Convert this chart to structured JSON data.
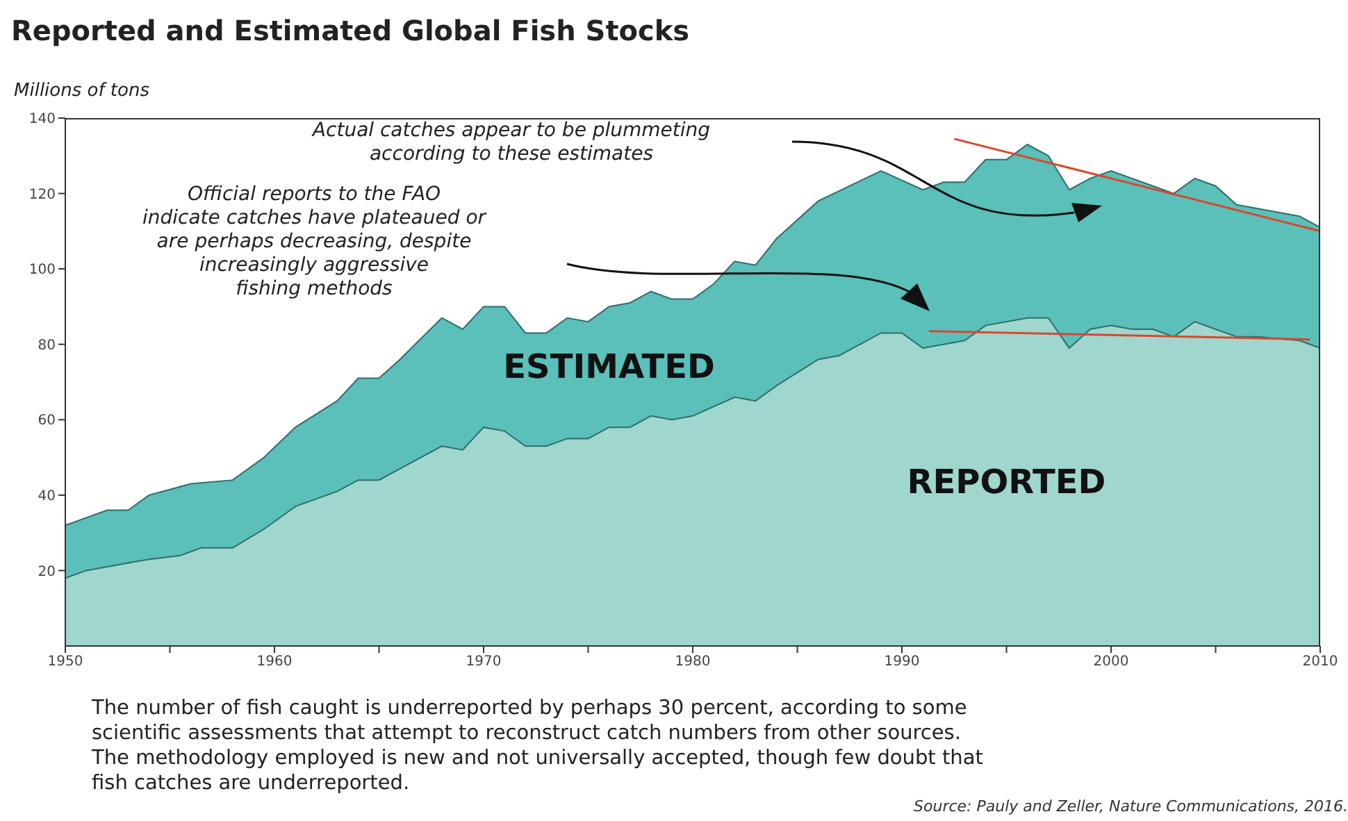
{
  "chart_data": {
    "type": "area",
    "title": "Reported and Estimated Global Fish Stocks",
    "ylabel": "Millions of tons",
    "annotations": [
      "Actual catches appear to be plummeting\naccording to these estimates",
      "Official reports to the FAO\nindicate catches have plateaued or\nare perhaps decreasing, despite\nincreasingly aggressive\nfishing methods",
      "The number of fish caught is underreported by perhaps 30 percent, according to some\nscientific assessments that attempt to reconstruct catch numbers from other sources.\nThe methodology employed is new and not universally accepted, though few doubt that\nfish catches are underreported.",
      "Source: Pauly and Zeller, Nature Communications, 2016."
    ],
    "series": [
      {
        "name": "ESTIMATED",
        "color": "#5bbfba",
        "x": [
          1950,
          1952,
          1953,
          1954,
          1956,
          1958,
          1959.5,
          1961,
          1963,
          1964,
          1965,
          1966,
          1968,
          1969,
          1970,
          1971,
          1972,
          1973,
          1974,
          1975,
          1976,
          1977,
          1978,
          1979,
          1980,
          1981,
          1982,
          1983,
          1984,
          1986,
          1989,
          1991,
          1992,
          1993,
          1994,
          1995,
          1996,
          1997,
          1998,
          1999,
          2000,
          2001,
          2002,
          2003,
          2004,
          2005,
          2006,
          2007,
          2009,
          2010
        ],
        "values": [
          32,
          36,
          36,
          40,
          43,
          44,
          50,
          58,
          65,
          71,
          71,
          76,
          87,
          84,
          90,
          90,
          83,
          83,
          87,
          86,
          90,
          91,
          94,
          92,
          92,
          96,
          102,
          101,
          108,
          118,
          126,
          121,
          123,
          123,
          129,
          129,
          133,
          130,
          121,
          124,
          126,
          124,
          122,
          120,
          124,
          122,
          117,
          116,
          114,
          111
        ]
      },
      {
        "name": "REPORTED",
        "color": "#9fd6cd",
        "x": [
          1950,
          1951,
          1953,
          1954,
          1955.5,
          1956.5,
          1958,
          1959.5,
          1961,
          1963,
          1964,
          1965,
          1966,
          1968,
          1969,
          1970,
          1971,
          1972,
          1973,
          1974,
          1975,
          1976,
          1977,
          1978,
          1979,
          1980,
          1982,
          1983,
          1984,
          1986,
          1987,
          1989,
          1990,
          1991,
          1993,
          1994,
          1996,
          1997,
          1998,
          1999,
          2000,
          2001,
          2002,
          2003,
          2004,
          2005,
          2006,
          2007,
          2009,
          2010
        ],
        "values": [
          18,
          20,
          22,
          23,
          24,
          26,
          26,
          31,
          37,
          41,
          44,
          44,
          47,
          53,
          52,
          58,
          57,
          53,
          53,
          55,
          55,
          58,
          58,
          61,
          60,
          61,
          66,
          65,
          69,
          76,
          77,
          83,
          83,
          79,
          81,
          85,
          87,
          87,
          79,
          84,
          85,
          84,
          84,
          82,
          86,
          84,
          82,
          82,
          81,
          79
        ]
      },
      {
        "type": "line",
        "color": "#d9472b",
        "x": [
          1992.5,
          2010
        ],
        "values": [
          134.5,
          110
        ]
      },
      {
        "type": "line",
        "color": "#d9472b",
        "x": [
          1991.3,
          2009.5
        ],
        "values": [
          83.5,
          81.3
        ]
      }
    ],
    "xlim": [
      1950,
      2010
    ],
    "xticks": [
      1950,
      {
        "value": 1955,
        "label": null
      },
      1960,
      {
        "value": 1965,
        "label": null
      },
      1970,
      {
        "value": 1975,
        "label": null
      },
      1980,
      {
        "value": 1985,
        "label": null
      },
      1990,
      {
        "value": 1995,
        "label": null
      },
      2000,
      {
        "value": 2005,
        "label": null
      },
      2010
    ],
    "ylim": [
      0,
      140
    ],
    "yticks": [
      20,
      40,
      60,
      80,
      100,
      120,
      140
    ],
    "grid": false
  }
}
